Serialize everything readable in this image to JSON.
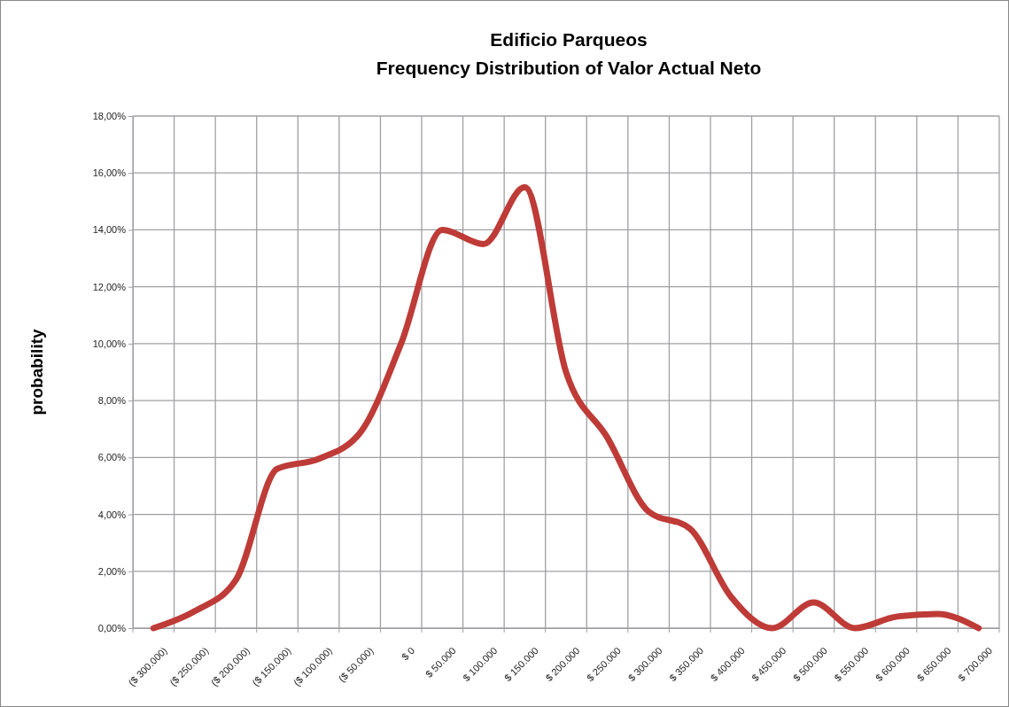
{
  "chart_data": {
    "type": "line",
    "title": "Edificio Parqueos\nFrequency Distribution of Valor Actual Neto",
    "ylabel": "probability",
    "categories": [
      "($ 300.000)",
      "($ 250.000)",
      "($ 200.000)",
      "($ 150.000)",
      "($ 100.000)",
      "($ 50.000)",
      "$ 0",
      "$ 50.000",
      "$ 100.000",
      "$ 150.000",
      "$ 200.000",
      "$ 250.000",
      "$ 300.000",
      "$ 350.000",
      "$ 400.000",
      "$ 450.000",
      "$ 500.000",
      "$ 550.000",
      "$ 600.000",
      "$ 650.000",
      "$ 700.000"
    ],
    "series": [
      {
        "color": "#be3b37",
        "values": [
          0,
          0.6,
          1.7,
          5.6,
          5.95,
          6.85,
          10,
          14,
          13.5,
          15.5,
          9,
          6.7,
          4.1,
          3.5,
          1.1,
          0,
          0.9,
          0,
          0.4,
          0.5,
          0
        ]
      }
    ],
    "ylim": [
      0,
      18
    ],
    "yticks": [
      {
        "value": 0,
        "label": "0,00%"
      },
      {
        "value": 2,
        "label": "2,00%"
      },
      {
        "value": 4,
        "label": "4,00%"
      },
      {
        "value": 6,
        "label": "6,00%"
      },
      {
        "value": 8,
        "label": "8,00%"
      },
      {
        "value": 10,
        "label": "10,00%"
      },
      {
        "value": 12,
        "label": "12,00%"
      },
      {
        "value": 14,
        "label": "14,00%"
      },
      {
        "value": 16,
        "label": "16,00%"
      },
      {
        "value": 18,
        "label": "18,00%"
      }
    ],
    "grid": true,
    "legend": false,
    "marker": "none",
    "line_style": "solid"
  }
}
